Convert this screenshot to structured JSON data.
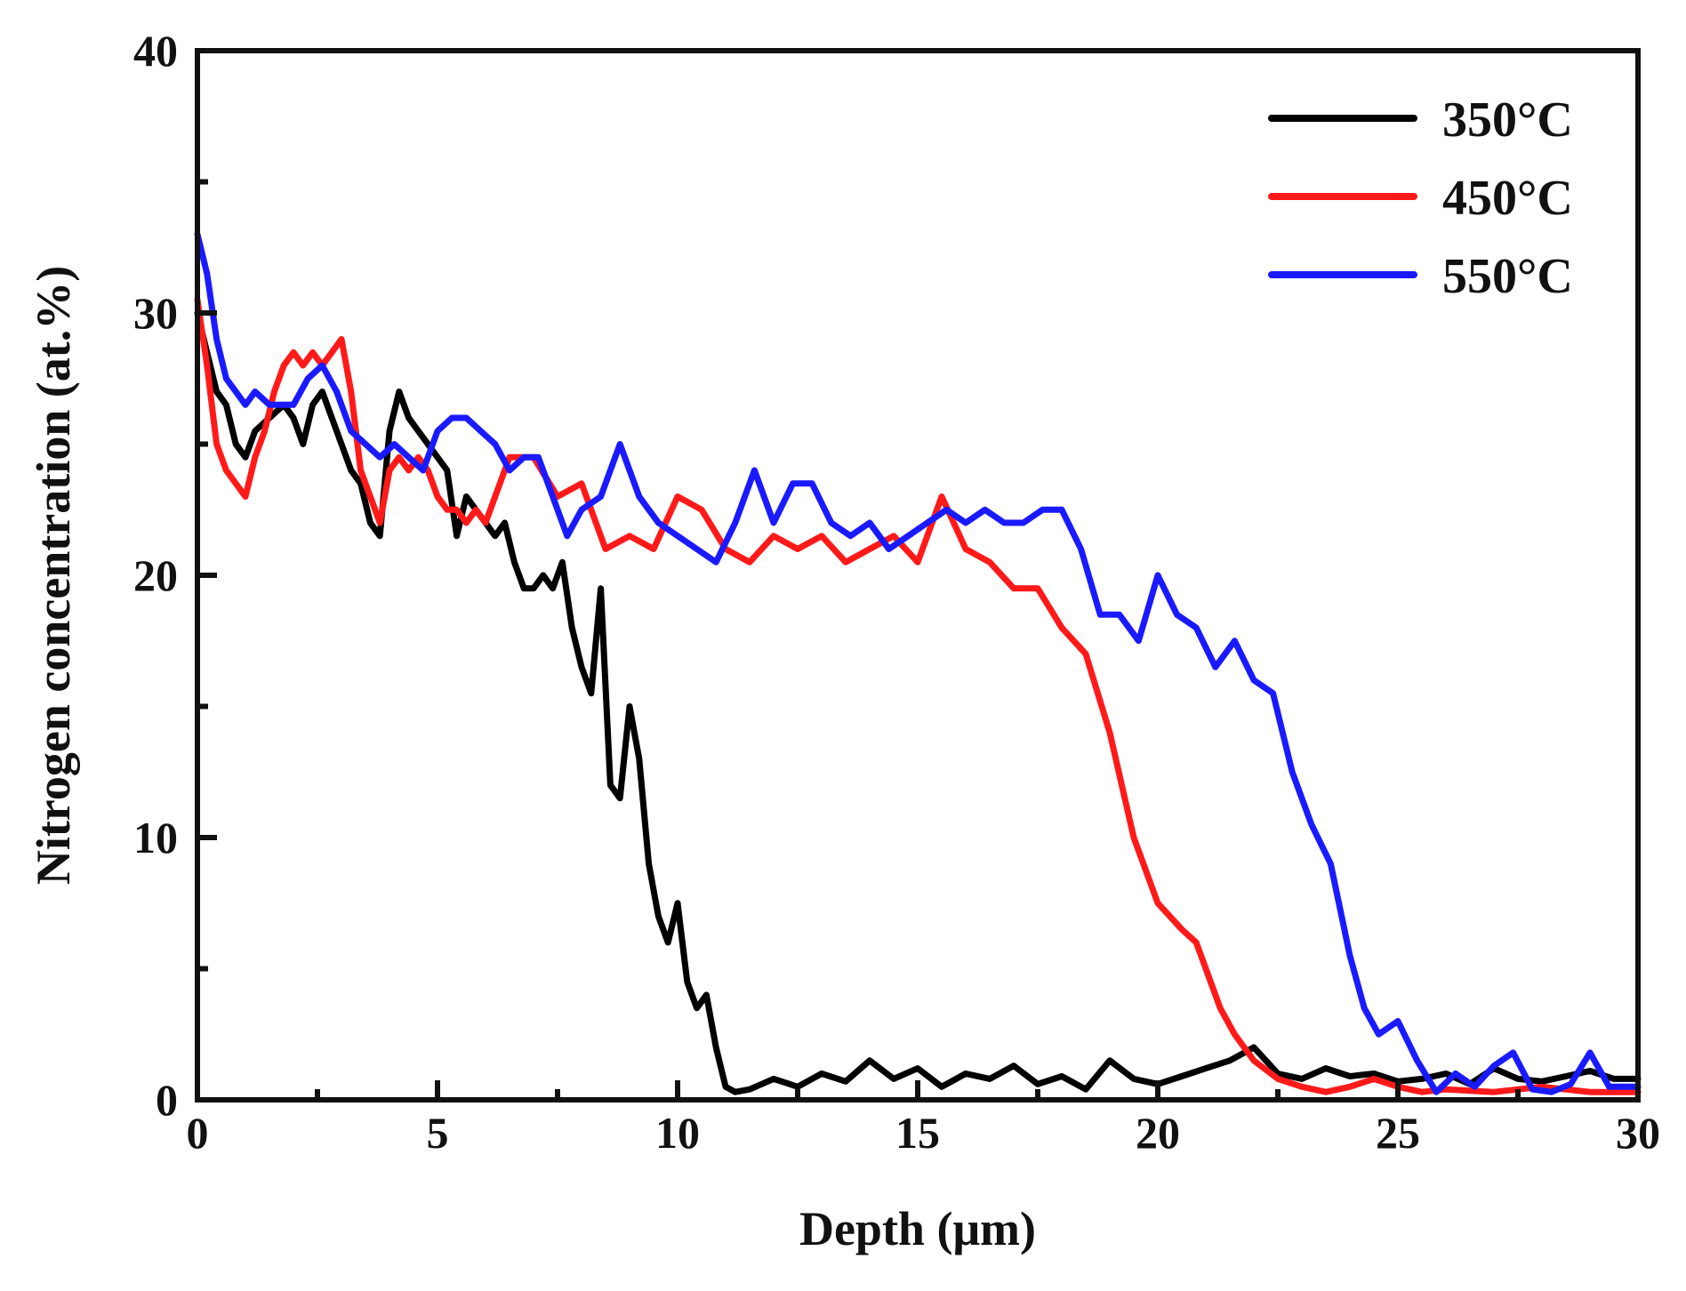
{
  "chart_data": {
    "type": "line",
    "title": "",
    "xlabel": "Depth (μm)",
    "ylabel": "Nitrogen concentration (at.%)",
    "xlim": [
      0,
      30
    ],
    "ylim": [
      0,
      40
    ],
    "xticks": [
      0,
      5,
      10,
      15,
      20,
      25,
      30
    ],
    "yticks": [
      0,
      10,
      20,
      30,
      40
    ],
    "xtick_labels": [
      "0",
      "5",
      "10",
      "15",
      "20",
      "25",
      "30"
    ],
    "ytick_labels": [
      "0",
      "10",
      "20",
      "30",
      "40"
    ],
    "grid": false,
    "legend_position": "top-right",
    "series": [
      {
        "name": "350°C",
        "color": "#000000",
        "x": [
          0.0,
          0.2,
          0.4,
          0.6,
          0.8,
          1.0,
          1.2,
          1.5,
          1.8,
          2.0,
          2.2,
          2.4,
          2.6,
          2.8,
          3.0,
          3.2,
          3.4,
          3.6,
          3.8,
          4.0,
          4.2,
          4.4,
          4.6,
          4.8,
          5.0,
          5.2,
          5.4,
          5.6,
          5.8,
          6.0,
          6.2,
          6.4,
          6.6,
          6.8,
          7.0,
          7.2,
          7.4,
          7.6,
          7.8,
          8.0,
          8.2,
          8.4,
          8.6,
          8.8,
          9.0,
          9.2,
          9.4,
          9.6,
          9.8,
          10.0,
          10.2,
          10.4,
          10.6,
          10.8,
          11.0,
          11.2,
          11.5,
          12.0,
          12.5,
          13.0,
          13.5,
          14.0,
          14.5,
          15.0,
          15.5,
          16.0,
          16.5,
          17.0,
          17.5,
          18.0,
          18.5,
          19.0,
          19.5,
          20.0,
          20.5,
          21.0,
          21.5,
          22.0,
          22.5,
          23.0,
          23.5,
          24.0,
          24.5,
          25.0,
          25.5,
          26.0,
          26.5,
          27.0,
          27.5,
          28.0,
          28.5,
          29.0,
          29.5,
          30.0
        ],
        "y": [
          30.0,
          28.5,
          27.0,
          26.5,
          25.0,
          24.5,
          25.5,
          26.0,
          26.5,
          26.0,
          25.0,
          26.5,
          27.0,
          26.0,
          25.0,
          24.0,
          23.5,
          22.0,
          21.5,
          25.5,
          27.0,
          26.0,
          25.5,
          25.0,
          24.5,
          24.0,
          21.5,
          23.0,
          22.5,
          22.0,
          21.5,
          22.0,
          20.5,
          19.5,
          19.5,
          20.0,
          19.5,
          20.5,
          18.0,
          16.5,
          15.5,
          19.5,
          12.0,
          11.5,
          15.0,
          13.0,
          9.0,
          7.0,
          6.0,
          7.5,
          4.5,
          3.5,
          4.0,
          2.0,
          0.5,
          0.3,
          0.4,
          0.8,
          0.5,
          1.0,
          0.7,
          1.5,
          0.8,
          1.2,
          0.5,
          1.0,
          0.8,
          1.3,
          0.6,
          0.9,
          0.4,
          1.5,
          0.8,
          0.6,
          0.9,
          1.2,
          1.5,
          2.0,
          1.0,
          0.8,
          1.2,
          0.9,
          1.0,
          0.7,
          0.8,
          1.0,
          0.6,
          1.2,
          0.8,
          0.7,
          0.9,
          1.1,
          0.8,
          0.8
        ]
      },
      {
        "name": "450°C",
        "color": "#ff1a1a",
        "x": [
          0.0,
          0.2,
          0.4,
          0.6,
          0.8,
          1.0,
          1.2,
          1.4,
          1.6,
          1.8,
          2.0,
          2.2,
          2.4,
          2.6,
          2.8,
          3.0,
          3.2,
          3.4,
          3.6,
          3.8,
          4.0,
          4.2,
          4.4,
          4.6,
          4.8,
          5.0,
          5.2,
          5.4,
          5.6,
          5.8,
          6.0,
          6.2,
          6.5,
          7.0,
          7.5,
          8.0,
          8.5,
          9.0,
          9.5,
          10.0,
          10.5,
          11.0,
          11.5,
          12.0,
          12.5,
          13.0,
          13.5,
          14.0,
          14.5,
          15.0,
          15.5,
          16.0,
          16.5,
          17.0,
          17.5,
          18.0,
          18.5,
          19.0,
          19.5,
          20.0,
          20.5,
          20.8,
          21.0,
          21.3,
          21.6,
          22.0,
          22.5,
          23.0,
          23.5,
          24.0,
          24.5,
          25.0,
          25.5,
          26.0,
          27.0,
          28.0,
          29.0,
          30.0
        ],
        "y": [
          30.5,
          28.0,
          25.0,
          24.0,
          23.5,
          23.0,
          24.5,
          25.5,
          27.0,
          28.0,
          28.5,
          28.0,
          28.5,
          28.0,
          28.5,
          29.0,
          27.0,
          24.0,
          23.0,
          22.0,
          24.0,
          24.5,
          24.0,
          24.5,
          24.0,
          23.0,
          22.5,
          22.5,
          22.0,
          22.5,
          22.0,
          23.0,
          24.5,
          24.5,
          23.0,
          23.5,
          21.0,
          21.5,
          21.0,
          23.0,
          22.5,
          21.0,
          20.5,
          21.5,
          21.0,
          21.5,
          20.5,
          21.0,
          21.5,
          20.5,
          23.0,
          21.0,
          20.5,
          19.5,
          19.5,
          18.0,
          17.0,
          14.0,
          10.0,
          7.5,
          6.5,
          6.0,
          5.0,
          3.5,
          2.5,
          1.5,
          0.8,
          0.5,
          0.3,
          0.5,
          0.8,
          0.5,
          0.3,
          0.4,
          0.3,
          0.5,
          0.3,
          0.3
        ]
      },
      {
        "name": "550°C",
        "color": "#1a1aff",
        "x": [
          0.0,
          0.2,
          0.4,
          0.6,
          0.8,
          1.0,
          1.2,
          1.5,
          1.8,
          2.0,
          2.3,
          2.6,
          2.9,
          3.2,
          3.5,
          3.8,
          4.1,
          4.4,
          4.7,
          5.0,
          5.3,
          5.6,
          5.9,
          6.2,
          6.5,
          6.8,
          7.1,
          7.4,
          7.7,
          8.0,
          8.4,
          8.8,
          9.2,
          9.6,
          10.0,
          10.4,
          10.8,
          11.2,
          11.6,
          12.0,
          12.4,
          12.8,
          13.2,
          13.6,
          14.0,
          14.4,
          14.8,
          15.2,
          15.6,
          16.0,
          16.4,
          16.8,
          17.2,
          17.6,
          18.0,
          18.4,
          18.8,
          19.2,
          19.6,
          20.0,
          20.4,
          20.8,
          21.2,
          21.6,
          22.0,
          22.4,
          22.8,
          23.2,
          23.6,
          24.0,
          24.3,
          24.6,
          25.0,
          25.4,
          25.8,
          26.2,
          26.6,
          27.0,
          27.4,
          27.8,
          28.2,
          28.6,
          29.0,
          29.4,
          30.0
        ],
        "y": [
          33.0,
          31.5,
          29.0,
          27.5,
          27.0,
          26.5,
          27.0,
          26.5,
          26.5,
          26.5,
          27.5,
          28.0,
          27.0,
          25.5,
          25.0,
          24.5,
          25.0,
          24.5,
          24.0,
          25.5,
          26.0,
          26.0,
          25.5,
          25.0,
          24.0,
          24.5,
          24.5,
          23.0,
          21.5,
          22.5,
          23.0,
          25.0,
          23.0,
          22.0,
          21.5,
          21.0,
          20.5,
          22.0,
          24.0,
          22.0,
          23.5,
          23.5,
          22.0,
          21.5,
          22.0,
          21.0,
          21.5,
          22.0,
          22.5,
          22.0,
          22.5,
          22.0,
          22.0,
          22.5,
          22.5,
          21.0,
          18.5,
          18.5,
          17.5,
          20.0,
          18.5,
          18.0,
          16.5,
          17.5,
          16.0,
          15.5,
          12.5,
          10.5,
          9.0,
          5.5,
          3.5,
          2.5,
          3.0,
          1.5,
          0.3,
          1.0,
          0.5,
          1.3,
          1.8,
          0.4,
          0.3,
          0.6,
          1.8,
          0.5,
          0.5
        ]
      }
    ]
  }
}
